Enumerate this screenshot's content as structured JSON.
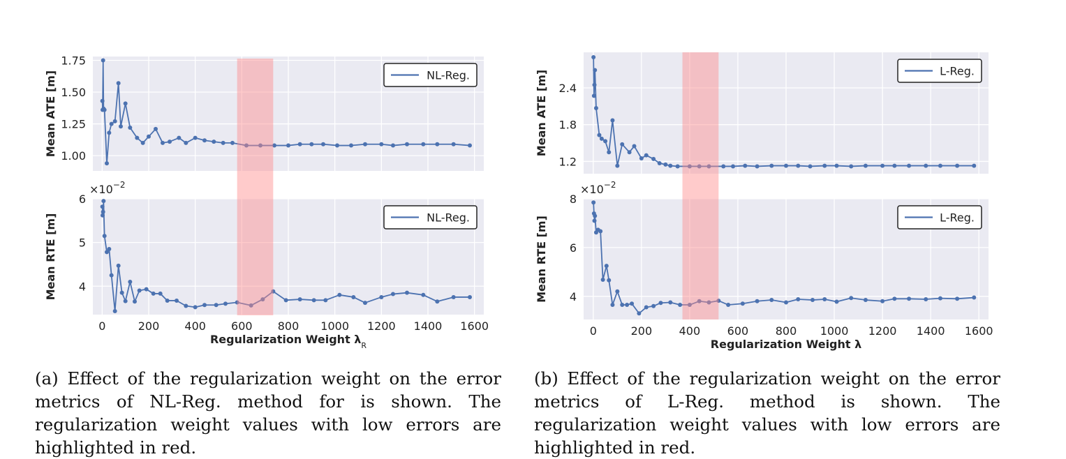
{
  "colors": {
    "line": "#4c72b0",
    "plot_bg": "#eaeaf2",
    "grid": "#ffffff",
    "highlight": "#ff8c8c",
    "legend_border": "#222222"
  },
  "caption_a": "(a) Effect of the regularization weight on the error metrics of NL-Reg. method for is shown. The regularization weight values with low errors are highlighted in red.",
  "caption_b": "(b) Effect of the regularization weight on the error metrics of L-Reg. method is shown. The regularization weight values with low errors are highlighted in red.",
  "chart_data": [
    {
      "id": "nl-ate",
      "type": "line",
      "ylabel": "Mean ATE [m]",
      "xlabel": "",
      "legend": "NL-Reg.",
      "legend_position": "top-right",
      "xlim": [
        -40,
        1640
      ],
      "ylim": [
        0.88,
        1.78
      ],
      "yticks": [
        1.0,
        1.25,
        1.5,
        1.75
      ],
      "ytick_labels": [
        "1.00",
        "1.25",
        "1.50",
        "1.75"
      ],
      "xticks": [
        0,
        200,
        400,
        600,
        800,
        1000,
        1200,
        1400,
        1600
      ],
      "multiplier": "",
      "highlight_range": [
        580,
        735
      ],
      "x": [
        1,
        2,
        4,
        6,
        10,
        20,
        30,
        40,
        55,
        70,
        80,
        100,
        120,
        150,
        175,
        200,
        230,
        260,
        290,
        330,
        360,
        400,
        440,
        480,
        520,
        560,
        620,
        680,
        740,
        800,
        850,
        900,
        950,
        1010,
        1070,
        1130,
        1200,
        1250,
        1310,
        1380,
        1440,
        1510,
        1580
      ],
      "y": [
        1.43,
        1.36,
        1.75,
        1.37,
        1.36,
        0.94,
        1.18,
        1.25,
        1.27,
        1.57,
        1.23,
        1.41,
        1.22,
        1.14,
        1.1,
        1.15,
        1.21,
        1.1,
        1.11,
        1.14,
        1.1,
        1.14,
        1.12,
        1.11,
        1.1,
        1.1,
        1.08,
        1.08,
        1.08,
        1.08,
        1.09,
        1.09,
        1.09,
        1.08,
        1.08,
        1.09,
        1.09,
        1.08,
        1.09,
        1.09,
        1.09,
        1.09,
        1.08
      ]
    },
    {
      "id": "nl-rte",
      "type": "line",
      "ylabel": "Mean RTE [m]",
      "xlabel": "Regularization Weight λ",
      "xlabel_sub": "R",
      "legend": "NL-Reg.",
      "legend_position": "top-right",
      "xlim": [
        -40,
        1640
      ],
      "ylim": [
        3.35,
        6.0
      ],
      "yticks": [
        4,
        5,
        6
      ],
      "ytick_labels": [
        "4",
        "5",
        "6"
      ],
      "xticks": [
        0,
        200,
        400,
        600,
        800,
        1000,
        1200,
        1400,
        1600
      ],
      "xtick_labels": [
        "0",
        "200",
        "400",
        "600",
        "800",
        "1000",
        "1200",
        "1400",
        "1600"
      ],
      "multiplier": "×10",
      "multiplier_exp": "−2",
      "highlight_range": [
        580,
        735
      ],
      "x": [
        1,
        2,
        4,
        6,
        10,
        20,
        30,
        40,
        55,
        70,
        85,
        100,
        120,
        140,
        160,
        190,
        220,
        250,
        280,
        320,
        360,
        400,
        440,
        490,
        530,
        580,
        640,
        690,
        735,
        790,
        850,
        910,
        960,
        1020,
        1080,
        1130,
        1200,
        1250,
        1310,
        1380,
        1440,
        1510,
        1580
      ],
      "y": [
        5.82,
        5.62,
        5.7,
        5.95,
        5.15,
        4.78,
        4.85,
        4.25,
        3.43,
        4.47,
        3.85,
        3.66,
        4.1,
        3.65,
        3.9,
        3.93,
        3.83,
        3.83,
        3.67,
        3.67,
        3.55,
        3.52,
        3.57,
        3.57,
        3.6,
        3.63,
        3.56,
        3.7,
        3.88,
        3.68,
        3.7,
        3.68,
        3.68,
        3.8,
        3.75,
        3.62,
        3.75,
        3.82,
        3.85,
        3.8,
        3.65,
        3.75,
        3.75
      ]
    },
    {
      "id": "l-ate",
      "type": "line",
      "ylabel": "Mean ATE [m]",
      "xlabel": "",
      "legend": "L-Reg.",
      "legend_position": "top-right",
      "xlim": [
        -40,
        1640
      ],
      "ylim": [
        1.0,
        2.98
      ],
      "yticks": [
        1.2,
        1.8,
        2.4
      ],
      "ytick_labels": [
        "1.2",
        "1.8",
        "2.4"
      ],
      "xticks": [
        0,
        200,
        400,
        600,
        800,
        1000,
        1200,
        1400,
        1600
      ],
      "multiplier": "",
      "highlight_range": [
        370,
        520
      ],
      "x": [
        1,
        3,
        5,
        7,
        12,
        25,
        35,
        50,
        65,
        80,
        100,
        120,
        150,
        170,
        200,
        220,
        250,
        275,
        300,
        320,
        350,
        400,
        440,
        480,
        540,
        580,
        630,
        680,
        740,
        800,
        850,
        900,
        960,
        1010,
        1070,
        1130,
        1200,
        1250,
        1310,
        1380,
        1440,
        1510,
        1580
      ],
      "y": [
        2.9,
        2.27,
        2.45,
        2.69,
        2.07,
        1.63,
        1.57,
        1.53,
        1.35,
        1.87,
        1.13,
        1.48,
        1.35,
        1.45,
        1.25,
        1.3,
        1.24,
        1.17,
        1.15,
        1.13,
        1.12,
        1.12,
        1.12,
        1.12,
        1.12,
        1.12,
        1.13,
        1.12,
        1.13,
        1.13,
        1.13,
        1.12,
        1.13,
        1.13,
        1.12,
        1.13,
        1.13,
        1.13,
        1.13,
        1.13,
        1.13,
        1.13,
        1.13
      ]
    },
    {
      "id": "l-rte",
      "type": "line",
      "ylabel": "Mean RTE [m]",
      "xlabel": "Regularization Weight λ",
      "xlabel_sub": "",
      "legend": "L-Reg.",
      "legend_position": "top-right",
      "xlim": [
        -40,
        1640
      ],
      "ylim": [
        3.05,
        8.0
      ],
      "yticks": [
        4,
        6,
        8
      ],
      "ytick_labels": [
        "4",
        "6",
        "8"
      ],
      "xticks": [
        0,
        200,
        400,
        600,
        800,
        1000,
        1200,
        1400,
        1600
      ],
      "xtick_labels": [
        "0",
        "200",
        "400",
        "600",
        "800",
        "1000",
        "1200",
        "1400",
        "1600"
      ],
      "multiplier": "×10",
      "multiplier_exp": "−2",
      "highlight_range": [
        370,
        520
      ],
      "x": [
        1,
        3,
        5,
        7,
        12,
        20,
        30,
        40,
        55,
        65,
        80,
        100,
        120,
        140,
        160,
        190,
        220,
        250,
        280,
        320,
        360,
        400,
        440,
        480,
        520,
        560,
        620,
        680,
        740,
        800,
        850,
        910,
        960,
        1010,
        1070,
        1130,
        1200,
        1250,
        1310,
        1380,
        1440,
        1510,
        1580
      ],
      "y": [
        7.85,
        7.4,
        7.1,
        7.3,
        6.62,
        6.73,
        6.67,
        4.68,
        5.25,
        4.66,
        3.65,
        4.2,
        3.65,
        3.65,
        3.7,
        3.3,
        3.55,
        3.6,
        3.73,
        3.75,
        3.65,
        3.65,
        3.8,
        3.75,
        3.82,
        3.65,
        3.7,
        3.8,
        3.85,
        3.75,
        3.88,
        3.85,
        3.88,
        3.78,
        3.93,
        3.85,
        3.8,
        3.9,
        3.9,
        3.88,
        3.92,
        3.9,
        3.95
      ]
    }
  ]
}
